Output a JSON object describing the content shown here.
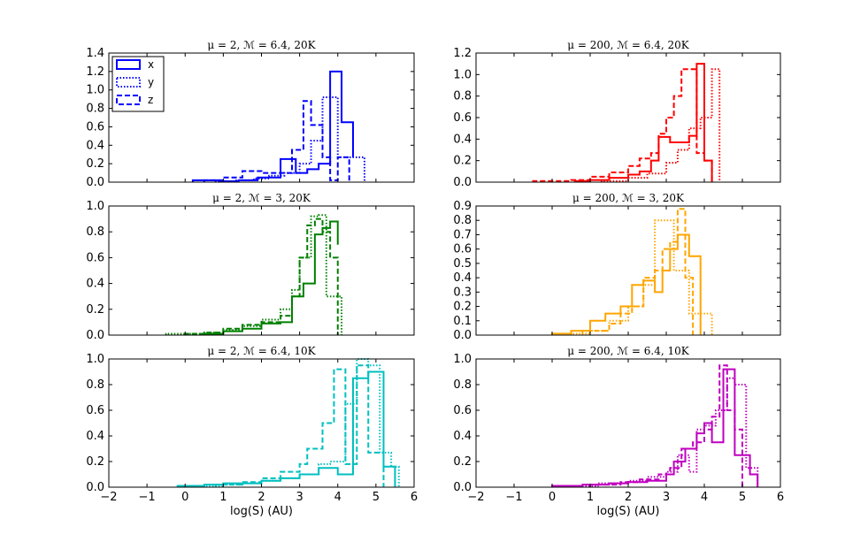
{
  "figure": {
    "xlabel": "log(S) (AU)",
    "legend": {
      "placement": "upper-left",
      "entries": [
        {
          "label": "x",
          "style": "solid"
        },
        {
          "label": "y",
          "style": "dotted"
        },
        {
          "label": "z",
          "style": "dashed"
        }
      ]
    }
  },
  "chart_data": [
    {
      "type": "histogram-step",
      "title": "μ = 2, ℳ = 6.4, 20K",
      "color": "#0000ff",
      "xlim": [
        -2,
        6
      ],
      "ylim": [
        0,
        1.4
      ],
      "yticks": [
        "0.0",
        "0.2",
        "0.4",
        "0.6",
        "0.8",
        "1.0",
        "1.2",
        "1.4"
      ],
      "xticks": [],
      "series": [
        {
          "name": "x",
          "style": "solid",
          "edges": [
            0.2,
            0.5,
            0.9,
            1.4,
            1.9,
            2.5,
            2.9,
            3.2,
            3.5,
            3.8,
            4.1,
            4.4
          ],
          "values": [
            0.02,
            0.02,
            0.01,
            0.02,
            0.05,
            0.25,
            0.1,
            0.14,
            0.2,
            1.2,
            0.65,
            0.27
          ]
        },
        {
          "name": "y",
          "style": "dotted",
          "edges": [
            0.8,
            1.3,
            1.8,
            2.2,
            2.6,
            3.0,
            3.3,
            3.6,
            4.0,
            4.3,
            4.7
          ],
          "values": [
            0.01,
            0.02,
            0.04,
            0.07,
            0.1,
            0.2,
            0.45,
            0.92,
            0.27,
            0.27
          ]
        },
        {
          "name": "z",
          "style": "dashed",
          "edges": [
            0.5,
            1.0,
            1.5,
            2.0,
            2.5,
            2.8,
            3.1,
            3.3,
            3.6,
            3.8,
            4.0,
            4.3
          ],
          "values": [
            0.02,
            0.05,
            0.12,
            0.1,
            0.1,
            0.35,
            0.88,
            0.62,
            0.27,
            0.02,
            0.27
          ]
        }
      ]
    },
    {
      "type": "histogram-step",
      "title": "μ = 200, ℳ = 6.4, 20K",
      "color": "#ff0000",
      "xlim": [
        -2,
        6
      ],
      "ylim": [
        0,
        1.2
      ],
      "yticks": [
        "0.0",
        "0.2",
        "0.4",
        "0.6",
        "0.8",
        "1.0",
        "1.2"
      ],
      "xticks": [],
      "series": [
        {
          "name": "x",
          "style": "solid",
          "edges": [
            0.6,
            1.0,
            1.5,
            2.0,
            2.3,
            2.6,
            2.8,
            3.1,
            3.4,
            3.6,
            3.8,
            4.0,
            4.2
          ],
          "values": [
            0.01,
            0.02,
            0.04,
            0.07,
            0.1,
            0.2,
            0.42,
            0.37,
            0.37,
            0.43,
            1.1,
            0.2
          ]
        },
        {
          "name": "y",
          "style": "dotted",
          "edges": [
            1.3,
            2.0,
            2.5,
            3.0,
            3.3,
            3.6,
            3.9,
            4.2,
            4.4
          ],
          "values": [
            0.01,
            0.04,
            0.08,
            0.18,
            0.3,
            0.5,
            0.6,
            1.05
          ]
        },
        {
          "name": "z",
          "style": "dashed",
          "edges": [
            -0.5,
            0.5,
            1.0,
            1.5,
            2.0,
            2.3,
            2.6,
            2.8,
            3.0,
            3.2,
            3.4,
            3.6,
            3.8,
            4.0,
            4.2
          ],
          "values": [
            0.01,
            0.02,
            0.05,
            0.09,
            0.15,
            0.22,
            0.27,
            0.45,
            0.6,
            0.8,
            1.05,
            1.05,
            0.27,
            0.2
          ]
        }
      ]
    },
    {
      "type": "histogram-step",
      "title": "μ = 2, ℳ = 3, 20K",
      "color": "#008000",
      "xlim": [
        -2,
        6
      ],
      "ylim": [
        0,
        1.0
      ],
      "yticks": [
        "0.0",
        "0.2",
        "0.4",
        "0.6",
        "0.8",
        "1.0"
      ],
      "xticks": [],
      "series": [
        {
          "name": "x",
          "style": "solid",
          "edges": [
            0.5,
            1.0,
            1.5,
            2.0,
            2.5,
            2.8,
            3.1,
            3.4,
            3.6,
            3.8,
            4.0
          ],
          "values": [
            0.01,
            0.03,
            0.05,
            0.09,
            0.1,
            0.3,
            0.4,
            0.78,
            0.83,
            0.88,
            0.7
          ]
        },
        {
          "name": "y",
          "style": "dotted",
          "edges": [
            -0.5,
            0.5,
            1.0,
            1.5,
            2.0,
            2.5,
            2.8,
            3.0,
            3.3,
            3.5,
            3.7,
            3.9,
            4.1
          ],
          "values": [
            0.01,
            0.02,
            0.04,
            0.07,
            0.12,
            0.2,
            0.35,
            0.6,
            0.92,
            0.93,
            0.3,
            0.3
          ]
        },
        {
          "name": "z",
          "style": "dashed",
          "edges": [
            0.0,
            0.5,
            1.0,
            1.5,
            2.0,
            2.5,
            2.8,
            3.0,
            3.2,
            3.4,
            3.6,
            3.8,
            4.0
          ],
          "values": [
            0.01,
            0.02,
            0.05,
            0.08,
            0.1,
            0.15,
            0.3,
            0.6,
            0.85,
            0.9,
            0.8,
            0.6
          ]
        }
      ]
    },
    {
      "type": "histogram-step",
      "title": "μ = 200, ℳ = 3, 20K",
      "color": "#ffa500",
      "xlim": [
        -2,
        6
      ],
      "ylim": [
        0,
        0.9
      ],
      "yticks": [
        "0.0",
        "0.1",
        "0.2",
        "0.3",
        "0.4",
        "0.5",
        "0.6",
        "0.7",
        "0.8",
        "0.9"
      ],
      "xticks": [],
      "series": [
        {
          "name": "x",
          "style": "solid",
          "edges": [
            0.0,
            0.5,
            1.0,
            1.4,
            1.8,
            2.1,
            2.4,
            2.7,
            2.9,
            3.1,
            3.3,
            3.6,
            3.9
          ],
          "values": [
            0.01,
            0.03,
            0.1,
            0.15,
            0.2,
            0.35,
            0.38,
            0.3,
            0.45,
            0.6,
            0.7,
            0.55
          ]
        },
        {
          "name": "y",
          "style": "dotted",
          "edges": [
            0.5,
            1.0,
            1.5,
            2.0,
            2.4,
            2.7,
            2.9,
            3.2,
            3.4,
            3.6,
            3.9,
            4.2
          ],
          "values": [
            0.01,
            0.03,
            0.1,
            0.2,
            0.35,
            0.8,
            0.8,
            0.45,
            0.45,
            0.15,
            0.15
          ]
        },
        {
          "name": "z",
          "style": "dashed",
          "edges": [
            0.8,
            1.5,
            1.8,
            2.1,
            2.4,
            2.7,
            2.9,
            3.1,
            3.3,
            3.5,
            3.7
          ],
          "values": [
            0.03,
            0.08,
            0.15,
            0.2,
            0.4,
            0.45,
            0.6,
            0.65,
            0.88,
            0.4
          ]
        }
      ]
    },
    {
      "type": "histogram-step",
      "title": "μ = 2, ℳ = 6.4, 10K",
      "color": "#00bfbf",
      "xlim": [
        -2,
        6
      ],
      "ylim": [
        0,
        1.0
      ],
      "yticks": [
        "0.0",
        "0.2",
        "0.4",
        "0.6",
        "0.8",
        "1.0"
      ],
      "xticks": [
        "−2",
        "−1",
        "0",
        "1",
        "2",
        "3",
        "4",
        "5",
        "6"
      ],
      "series": [
        {
          "name": "x",
          "style": "solid",
          "edges": [
            -0.2,
            0.5,
            1.0,
            1.5,
            2.0,
            2.5,
            3.0,
            3.5,
            4.0,
            4.4,
            4.8,
            5.2,
            5.5
          ],
          "values": [
            0.01,
            0.02,
            0.03,
            0.03,
            0.05,
            0.07,
            0.1,
            0.15,
            0.1,
            0.85,
            0.9,
            0.16
          ]
        },
        {
          "name": "y",
          "style": "dotted",
          "edges": [
            0.5,
            1.0,
            1.5,
            2.0,
            2.5,
            3.0,
            3.5,
            3.8,
            4.2,
            4.5,
            4.8,
            5.1,
            5.4,
            5.6
          ],
          "values": [
            0.01,
            0.02,
            0.03,
            0.05,
            0.07,
            0.1,
            0.18,
            0.2,
            0.65,
            1.0,
            0.95,
            0.27,
            0.16
          ]
        },
        {
          "name": "z",
          "style": "dashed",
          "edges": [
            0.8,
            1.5,
            2.0,
            2.5,
            3.0,
            3.2,
            3.6,
            3.9,
            4.2,
            4.5,
            4.8,
            5.2
          ],
          "values": [
            0.02,
            0.04,
            0.07,
            0.12,
            0.18,
            0.3,
            0.5,
            0.92,
            0.18,
            0.95,
            0.27
          ]
        }
      ]
    },
    {
      "type": "histogram-step",
      "title": "μ = 200, ℳ = 6.4, 10K",
      "color": "#bf00bf",
      "xlim": [
        -2,
        6
      ],
      "ylim": [
        0,
        1.0
      ],
      "yticks": [
        "0.0",
        "0.2",
        "0.4",
        "0.6",
        "0.8",
        "1.0"
      ],
      "xticks": [
        "−2",
        "−1",
        "0",
        "1",
        "2",
        "3",
        "4",
        "5",
        "6"
      ],
      "series": [
        {
          "name": "x",
          "style": "solid",
          "edges": [
            0.0,
            0.8,
            1.5,
            2.0,
            2.5,
            3.0,
            3.2,
            3.5,
            3.8,
            4.0,
            4.2,
            4.5,
            4.8,
            5.2,
            5.4
          ],
          "values": [
            0.01,
            0.02,
            0.03,
            0.04,
            0.05,
            0.1,
            0.2,
            0.3,
            0.42,
            0.5,
            0.35,
            0.92,
            0.25,
            0.1
          ]
        },
        {
          "name": "y",
          "style": "dotted",
          "edges": [
            0.5,
            1.2,
            2.0,
            2.5,
            3.0,
            3.3,
            3.6,
            3.8,
            4.0,
            4.3,
            4.6,
            4.8,
            5.1,
            5.4
          ],
          "values": [
            0.01,
            0.03,
            0.05,
            0.08,
            0.12,
            0.25,
            0.12,
            0.45,
            0.48,
            0.6,
            0.85,
            0.8,
            0.15
          ]
        },
        {
          "name": "z",
          "style": "dashed",
          "edges": [
            1.0,
            1.8,
            2.3,
            2.8,
            3.1,
            3.4,
            3.7,
            4.0,
            4.2,
            4.4,
            4.6,
            4.8,
            5.0
          ],
          "values": [
            0.02,
            0.04,
            0.06,
            0.1,
            0.15,
            0.3,
            0.35,
            0.45,
            0.55,
            0.95,
            0.6,
            0.45
          ]
        }
      ]
    }
  ]
}
